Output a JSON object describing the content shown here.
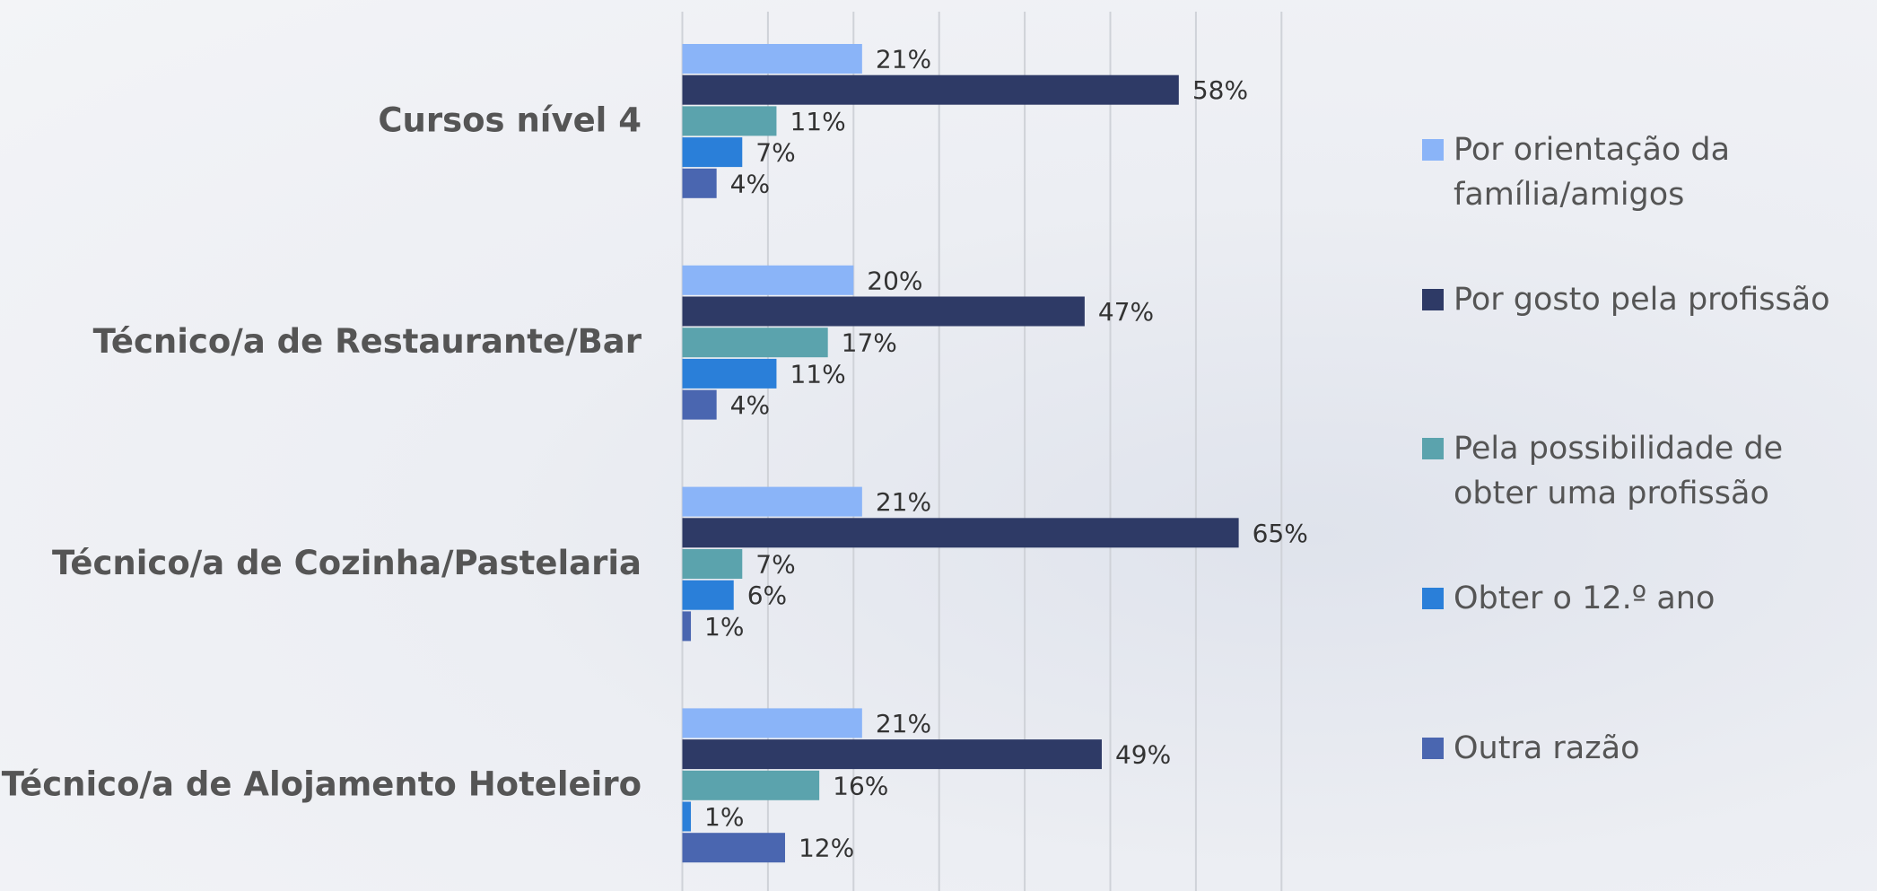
{
  "chart_data": {
    "type": "bar",
    "orientation": "horizontal",
    "categories": [
      "Cursos nível 4",
      "Técnico/a de Restaurante/Bar",
      "Técnico/a de Cozinha/Pastelaria",
      "Técnico/a de Alojamento Hoteleiro"
    ],
    "series": [
      {
        "name": "Por orientação da família/amigos",
        "color": "#8ab4f8",
        "values": [
          21,
          20,
          21,
          21
        ],
        "value_labels": [
          "21%",
          "20%",
          "21%",
          "21%"
        ]
      },
      {
        "name": "Por gosto pela profissão",
        "color": "#2e3a66",
        "values": [
          58,
          47,
          65,
          49
        ],
        "value_labels": [
          "58%",
          "47%",
          "65%",
          "49%"
        ]
      },
      {
        "name": "Pela possibilidade de obter uma profissão",
        "color": "#5ba3ad",
        "values": [
          11,
          17,
          7,
          16
        ],
        "value_labels": [
          "11%",
          "17%",
          "7%",
          "16%"
        ]
      },
      {
        "name": "Obter o 12.º ano",
        "color": "#2a7fd9",
        "values": [
          7,
          11,
          6,
          1
        ],
        "value_labels": [
          "7%",
          "11%",
          "6%",
          "1%"
        ]
      },
      {
        "name": "Outra razão",
        "color": "#4a66b0",
        "values": [
          4,
          4,
          1,
          12
        ],
        "value_labels": [
          "4%",
          "4%",
          "1%",
          "12%"
        ]
      }
    ],
    "xlim": [
      0,
      70
    ],
    "xticks": [
      0,
      10,
      20,
      30,
      40,
      50,
      60,
      70
    ],
    "grid": true,
    "legend": "right"
  }
}
